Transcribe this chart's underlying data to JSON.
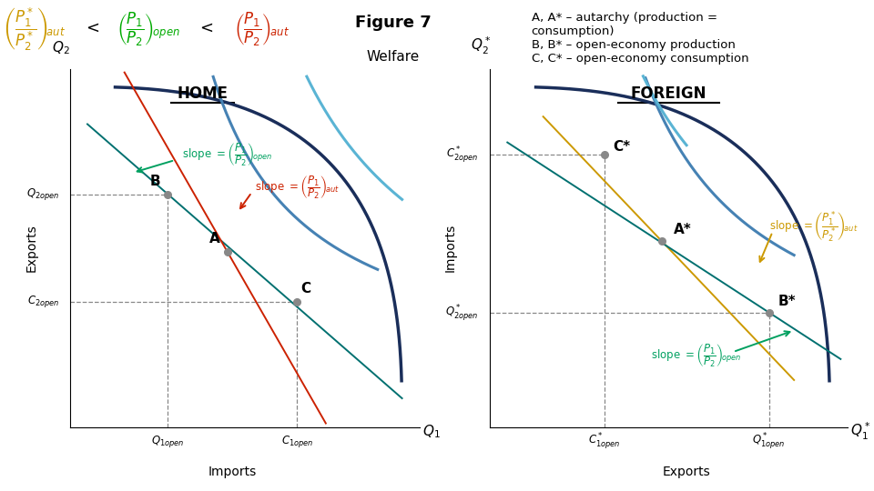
{
  "fig_title": "Figure 7",
  "fig_subtitle": "Welfare",
  "legend_text": "A, A* – autarchy (production =\nconsumption)\nB, B* – open-economy production\nC, C* – open-economy consumption",
  "home_label": "HOME",
  "foreign_label": "FOREIGN",
  "color_dark_navy": "#1a2e5a",
  "color_steel_blue": "#4682b4",
  "color_light_blue": "#5ab4d4",
  "color_teal": "#007070",
  "color_green": "#00a060",
  "color_red": "#cc2200",
  "color_gold": "#cc9900",
  "color_gray": "#888888",
  "top_eq_color1": "#cc9900",
  "top_eq_color2": "#00aa00",
  "top_eq_color3": "#cc2200"
}
